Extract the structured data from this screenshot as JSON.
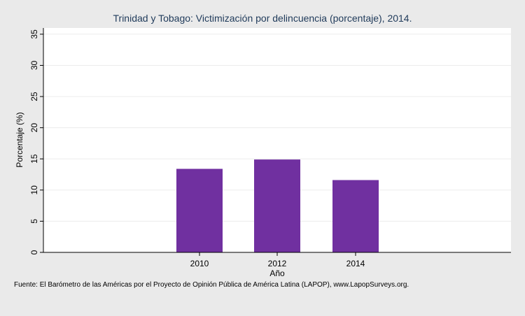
{
  "chart_data": {
    "type": "bar",
    "title": "Trinidad y Tobago: Victimización por delincuencia (porcentaje), 2014.",
    "xlabel": "Año",
    "ylabel": "Porcentaje (%)",
    "categories": [
      "2010",
      "2012",
      "2014"
    ],
    "values": [
      13.4,
      14.9,
      11.6
    ],
    "ylim": [
      0,
      36
    ],
    "yticks": [
      0,
      5,
      10,
      15,
      20,
      25,
      30,
      35
    ],
    "grid": true,
    "bar_color": "#7030a0"
  },
  "source_note": "Fuente: El Barómetro de las Américas por el Proyecto de Opinión Pública de América Latina (LAPOP), www.LapopSurveys.org."
}
